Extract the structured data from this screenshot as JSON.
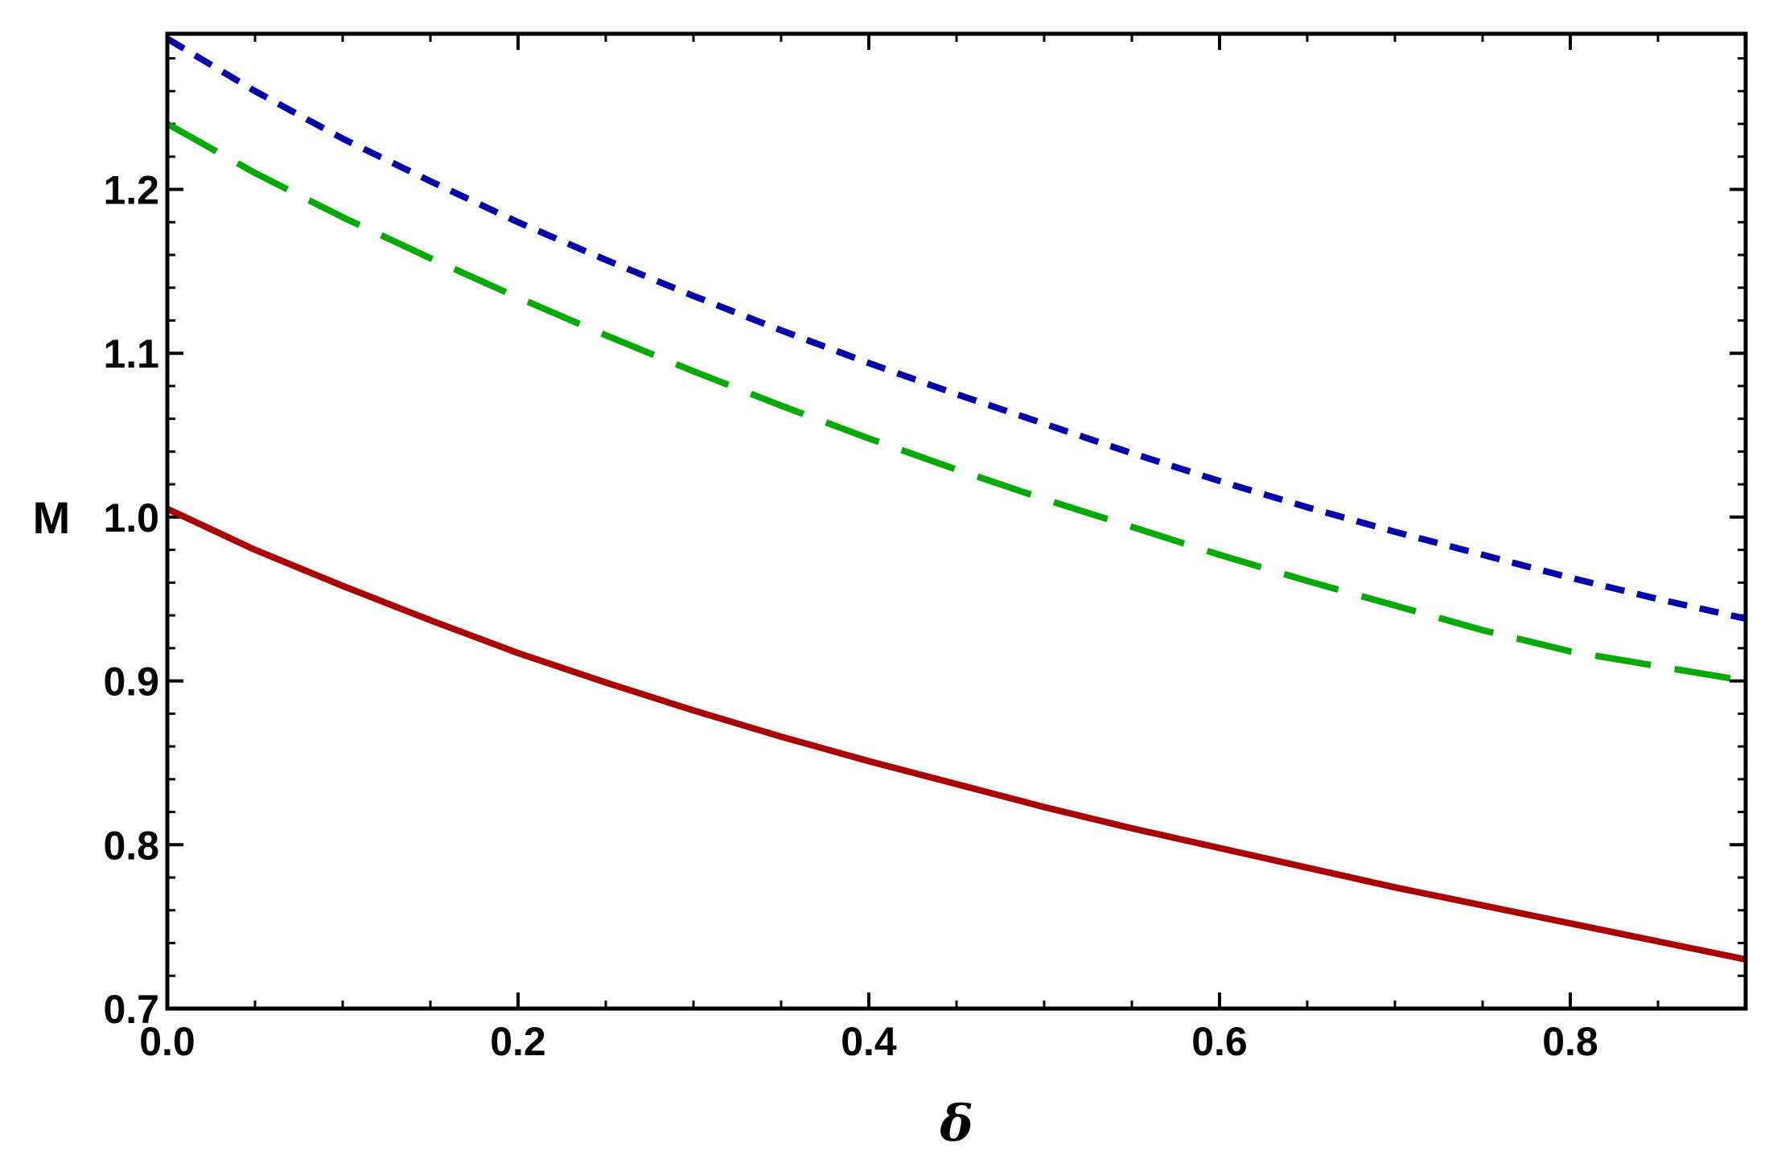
{
  "chart_data": {
    "type": "line",
    "title": "",
    "xlabel": "δ",
    "ylabel": "M",
    "xlim": [
      0,
      0.9
    ],
    "ylim": [
      0.7,
      1.295
    ],
    "x_ticks": [
      "0.0",
      "0.2",
      "0.4",
      "0.6",
      "0.8"
    ],
    "x_tick_values": [
      0,
      0.2,
      0.4,
      0.6,
      0.8
    ],
    "y_ticks": [
      "0.7",
      "0.8",
      "0.9",
      "1.0",
      "1.1",
      "1.2"
    ],
    "y_tick_values": [
      0.7,
      0.8,
      0.9,
      1.0,
      1.1,
      1.2
    ],
    "grid": false,
    "legend": "none",
    "series": [
      {
        "color": "#aa0000",
        "style": "solid",
        "x": [
          0,
          0.05,
          0.1,
          0.15,
          0.2,
          0.25,
          0.3,
          0.35,
          0.4,
          0.45,
          0.5,
          0.55,
          0.6,
          0.65,
          0.7,
          0.75,
          0.8,
          0.85,
          0.9
        ],
        "y": [
          1.005,
          0.98,
          0.958,
          0.937,
          0.917,
          0.899,
          0.882,
          0.866,
          0.851,
          0.837,
          0.823,
          0.81,
          0.798,
          0.786,
          0.774,
          0.763,
          0.752,
          0.741,
          0.73
        ]
      },
      {
        "color": "#00aa00",
        "style": "long-dash",
        "x": [
          0,
          0.05,
          0.1,
          0.15,
          0.2,
          0.25,
          0.3,
          0.35,
          0.4,
          0.45,
          0.5,
          0.55,
          0.6,
          0.65,
          0.7,
          0.75,
          0.8,
          0.85,
          0.9
        ],
        "y": [
          1.24,
          1.21,
          1.183,
          1.158,
          1.134,
          1.111,
          1.089,
          1.068,
          1.048,
          1.029,
          1.011,
          0.994,
          0.977,
          0.961,
          0.946,
          0.931,
          0.918,
          0.909,
          0.9
        ]
      },
      {
        "color": "#0000aa",
        "style": "short-dash",
        "x": [
          0,
          0.05,
          0.1,
          0.15,
          0.2,
          0.25,
          0.3,
          0.35,
          0.4,
          0.45,
          0.5,
          0.55,
          0.6,
          0.65,
          0.7,
          0.75,
          0.8,
          0.85,
          0.9
        ],
        "y": [
          1.292,
          1.26,
          1.231,
          1.205,
          1.18,
          1.157,
          1.135,
          1.114,
          1.094,
          1.075,
          1.057,
          1.039,
          1.022,
          1.006,
          0.991,
          0.977,
          0.963,
          0.95,
          0.938
        ]
      }
    ]
  }
}
